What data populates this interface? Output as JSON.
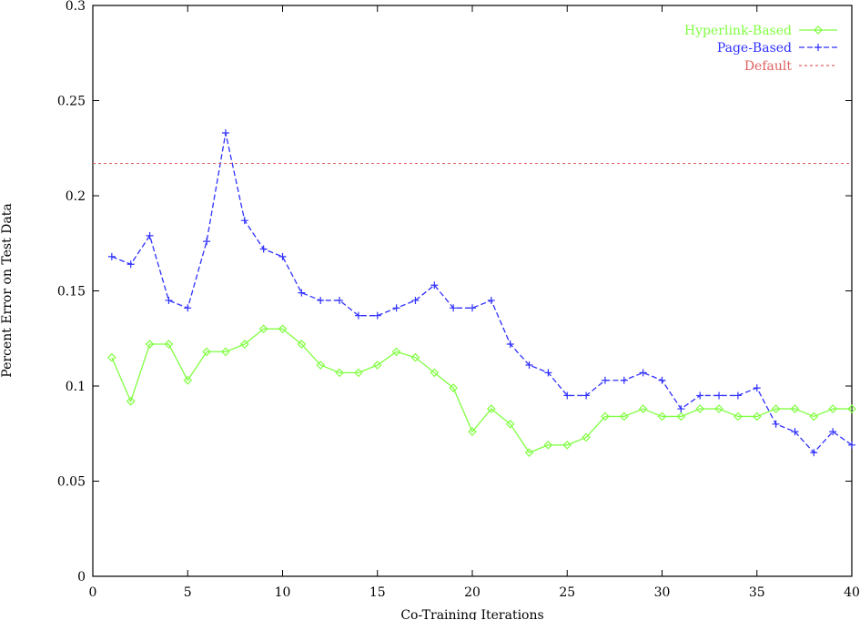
{
  "chart_data": {
    "type": "line",
    "title": "",
    "xlabel": "Co-Training Iterations",
    "ylabel": "Percent Error on Test Data",
    "xlim": [
      0,
      40
    ],
    "ylim": [
      0,
      0.3
    ],
    "x_ticks": [
      "0",
      "5",
      "10",
      "15",
      "20",
      "25",
      "30",
      "35",
      "40"
    ],
    "y_ticks": [
      "0",
      "0.05",
      "0.1",
      "0.15",
      "0.2",
      "0.25",
      "0.3"
    ],
    "grid": false,
    "legend_position": "top-right",
    "series": [
      {
        "name": "Hyperlink-Based",
        "color": "#80ff40",
        "marker": "diamond",
        "line": "solid",
        "x": [
          1,
          2,
          3,
          4,
          5,
          6,
          7,
          8,
          9,
          10,
          11,
          12,
          13,
          14,
          15,
          16,
          17,
          18,
          19,
          20,
          21,
          22,
          23,
          24,
          25,
          26,
          27,
          28,
          29,
          30,
          31,
          32,
          33,
          34,
          35,
          36,
          37,
          38,
          39,
          40
        ],
        "values": [
          0.115,
          0.092,
          0.122,
          0.122,
          0.103,
          0.118,
          0.118,
          0.122,
          0.13,
          0.13,
          0.122,
          0.111,
          0.107,
          0.107,
          0.111,
          0.118,
          0.115,
          0.107,
          0.099,
          0.076,
          0.088,
          0.08,
          0.065,
          0.069,
          0.069,
          0.073,
          0.084,
          0.084,
          0.088,
          0.084,
          0.084,
          0.088,
          0.088,
          0.084,
          0.084,
          0.088,
          0.088,
          0.084,
          0.088,
          0.088
        ]
      },
      {
        "name": "Page-Based",
        "color": "#3030ff",
        "marker": "plus",
        "line": "dashed",
        "x": [
          1,
          2,
          3,
          4,
          5,
          6,
          7,
          8,
          9,
          10,
          11,
          12,
          13,
          14,
          15,
          16,
          17,
          18,
          19,
          20,
          21,
          22,
          23,
          24,
          25,
          26,
          27,
          28,
          29,
          30,
          31,
          32,
          33,
          34,
          35,
          36,
          37,
          38,
          39,
          40
        ],
        "values": [
          0.168,
          0.164,
          0.179,
          0.145,
          0.141,
          0.176,
          0.233,
          0.187,
          0.172,
          0.168,
          0.149,
          0.145,
          0.145,
          0.137,
          0.137,
          0.141,
          0.145,
          0.153,
          0.141,
          0.141,
          0.145,
          0.122,
          0.111,
          0.107,
          0.095,
          0.095,
          0.103,
          0.103,
          0.107,
          0.103,
          0.088,
          0.095,
          0.095,
          0.095,
          0.099,
          0.08,
          0.076,
          0.065,
          0.076,
          0.069
        ]
      },
      {
        "name": "Default",
        "color": "#e06060",
        "marker": "none",
        "line": "dotted",
        "x": [
          0,
          40
        ],
        "values": [
          0.217,
          0.217
        ]
      }
    ]
  }
}
